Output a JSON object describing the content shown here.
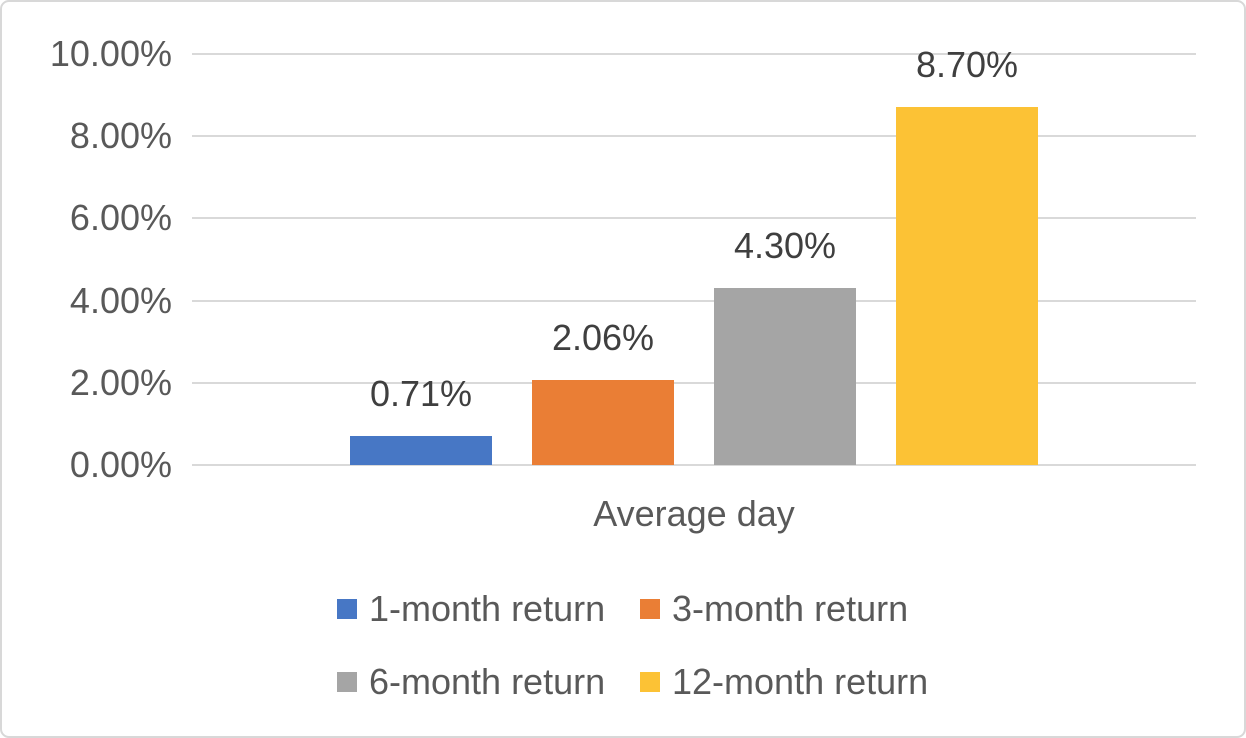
{
  "chart_data": {
    "type": "bar",
    "categories": [
      "Average day"
    ],
    "series": [
      {
        "name": "1-month return",
        "values": [
          0.71
        ],
        "color": "#4777C5",
        "data_label": "0.71%"
      },
      {
        "name": "3-month return",
        "values": [
          2.06
        ],
        "color": "#EA7E35",
        "data_label": "2.06%"
      },
      {
        "name": "6-month return",
        "values": [
          4.3
        ],
        "color": "#A5A5A5",
        "data_label": "4.30%"
      },
      {
        "name": "12-month return",
        "values": [
          8.7
        ],
        "color": "#FCC235",
        "data_label": "8.70%"
      }
    ],
    "title": "",
    "xlabel": "Average day",
    "ylabel": "",
    "ylim": [
      0,
      10
    ],
    "ytick_step": 2,
    "ytick_labels": [
      "0.00%",
      "2.00%",
      "4.00%",
      "6.00%",
      "8.00%",
      "10.00%"
    ],
    "grid": "horizontal",
    "legend_position": "bottom",
    "colors": {
      "gridline": "#D9D9D9",
      "frame_border": "#D8D8D8",
      "axis_text": "#595959",
      "data_label_text": "#3F3F3F",
      "background": "#FFFFFF"
    }
  }
}
